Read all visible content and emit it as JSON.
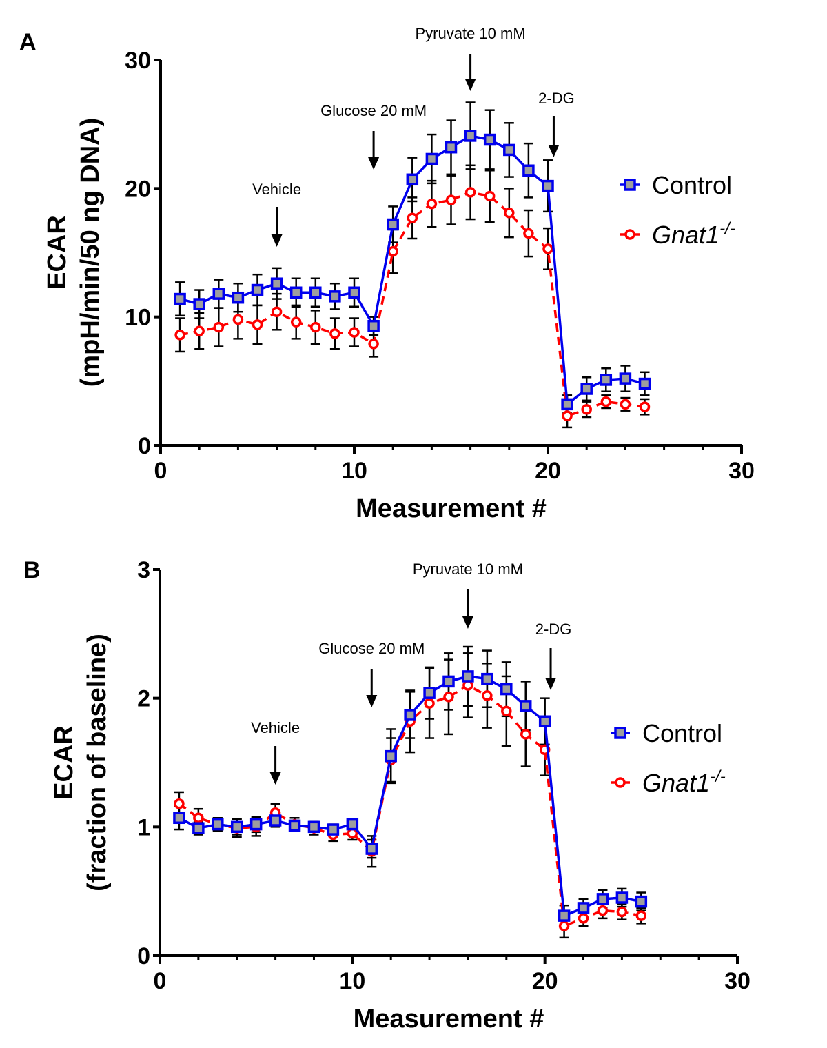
{
  "chart_data": [
    {
      "panel": "A",
      "type": "line",
      "title": "",
      "xlabel": "Measurement #",
      "ylabel_line1": "ECAR",
      "ylabel_line2": "(mpH/min/50 ng DNA)",
      "xlim": [
        0,
        30
      ],
      "ylim": [
        0,
        30
      ],
      "xticks": [
        0,
        10,
        20,
        30
      ],
      "yticks": [
        0,
        10,
        20,
        30
      ],
      "grid": false,
      "legend_position": "right",
      "x": [
        1,
        2,
        3,
        4,
        5,
        6,
        7,
        8,
        9,
        10,
        11,
        12,
        13,
        14,
        15,
        16,
        17,
        18,
        19,
        20,
        21,
        22,
        23,
        24,
        25
      ],
      "series": [
        {
          "name": "Control",
          "name_superscript": "",
          "color": "#0000ee",
          "marker": "square",
          "line_style": "solid",
          "values": [
            11.4,
            11.0,
            11.8,
            11.5,
            12.1,
            12.6,
            11.9,
            11.9,
            11.6,
            11.9,
            9.3,
            17.2,
            20.7,
            22.3,
            23.2,
            24.1,
            23.8,
            23.0,
            21.4,
            20.2,
            3.2,
            4.4,
            5.1,
            5.2,
            4.8
          ],
          "errors": [
            1.3,
            1.1,
            1.1,
            1.1,
            1.2,
            1.2,
            1.1,
            1.1,
            1.0,
            1.1,
            0.7,
            1.4,
            1.7,
            1.9,
            2.1,
            2.6,
            2.3,
            2.1,
            2.1,
            2.0,
            0.7,
            0.9,
            0.9,
            1.0,
            0.9
          ]
        },
        {
          "name": "Gnat1",
          "name_superscript": "-/-",
          "color": "#ff0000",
          "marker": "circle",
          "line_style": "dashed",
          "values": [
            8.6,
            8.9,
            9.2,
            9.8,
            9.4,
            10.4,
            9.6,
            9.2,
            8.7,
            8.8,
            7.9,
            15.1,
            17.7,
            18.8,
            19.1,
            19.7,
            19.4,
            18.1,
            16.5,
            15.3,
            2.3,
            2.8,
            3.4,
            3.2,
            3.0
          ],
          "errors": [
            1.3,
            1.4,
            1.5,
            1.5,
            1.5,
            1.4,
            1.3,
            1.3,
            1.2,
            1.1,
            1.0,
            1.7,
            1.6,
            1.8,
            1.9,
            2.1,
            2.0,
            1.9,
            1.8,
            1.6,
            0.9,
            0.6,
            0.5,
            0.5,
            0.6
          ]
        }
      ],
      "annotations": [
        {
          "text": "Vehicle",
          "x": 6
        },
        {
          "text": "Glucose 20 mM",
          "x": 11
        },
        {
          "text": "Pyruvate 10 mM",
          "x": 16
        },
        {
          "text": "2-DG",
          "x": 20.3
        }
      ]
    },
    {
      "panel": "B",
      "type": "line",
      "title": "",
      "xlabel": "Measurement #",
      "ylabel_line1": "ECAR",
      "ylabel_line2": "(fraction of baseline)",
      "xlim": [
        0,
        30
      ],
      "ylim": [
        0,
        3
      ],
      "xticks": [
        0,
        10,
        20,
        30
      ],
      "yticks": [
        0,
        1,
        2,
        3
      ],
      "grid": false,
      "legend_position": "right",
      "x": [
        1,
        2,
        3,
        4,
        5,
        6,
        7,
        8,
        9,
        10,
        11,
        12,
        13,
        14,
        15,
        16,
        17,
        18,
        19,
        20,
        21,
        22,
        23,
        24,
        25
      ],
      "series": [
        {
          "name": "Control",
          "name_superscript": "",
          "color": "#0000ee",
          "marker": "square",
          "line_style": "solid",
          "values": [
            1.07,
            0.99,
            1.02,
            1.0,
            1.02,
            1.05,
            1.01,
            1.0,
            0.98,
            1.02,
            0.83,
            1.55,
            1.87,
            2.04,
            2.13,
            2.17,
            2.15,
            2.07,
            1.94,
            1.82,
            0.31,
            0.37,
            0.44,
            0.45,
            0.42
          ],
          "errors": [
            0.09,
            0.05,
            0.05,
            0.06,
            0.06,
            0.05,
            0.04,
            0.04,
            0.04,
            0.04,
            0.07,
            0.21,
            0.18,
            0.2,
            0.22,
            0.23,
            0.22,
            0.21,
            0.19,
            0.18,
            0.08,
            0.07,
            0.07,
            0.07,
            0.07
          ]
        },
        {
          "name": "Gnat1",
          "name_superscript": "-/-",
          "color": "#ff0000",
          "marker": "circle",
          "line_style": "dashed",
          "values": [
            1.18,
            1.07,
            1.02,
            0.99,
            1.0,
            1.11,
            1.02,
            0.99,
            0.94,
            0.95,
            0.81,
            1.52,
            1.82,
            1.96,
            2.01,
            2.1,
            2.02,
            1.9,
            1.72,
            1.6,
            0.23,
            0.29,
            0.35,
            0.34,
            0.31
          ],
          "errors": [
            0.09,
            0.07,
            0.05,
            0.07,
            0.07,
            0.07,
            0.05,
            0.05,
            0.05,
            0.05,
            0.12,
            0.17,
            0.24,
            0.27,
            0.29,
            0.25,
            0.25,
            0.27,
            0.25,
            0.2,
            0.09,
            0.06,
            0.06,
            0.06,
            0.06
          ]
        }
      ],
      "annotations": [
        {
          "text": "Vehicle",
          "x": 6
        },
        {
          "text": "Glucose 20 mM",
          "x": 11
        },
        {
          "text": "Pyruvate 10 mM",
          "x": 16
        },
        {
          "text": "2-DG",
          "x": 20.3
        }
      ]
    }
  ]
}
